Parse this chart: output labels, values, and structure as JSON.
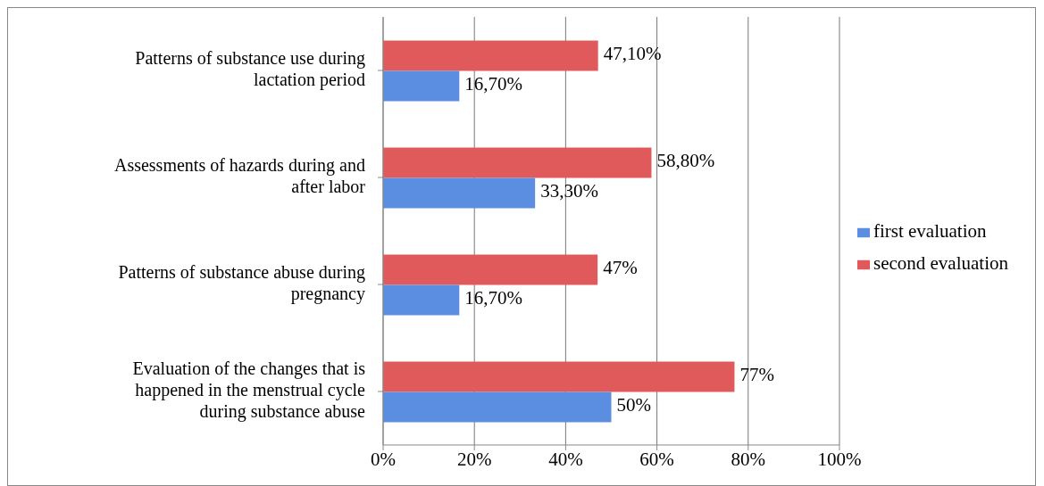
{
  "chart_data": {
    "type": "bar",
    "orientation": "horizontal",
    "categories": [
      "Patterns of substance use during lactation period",
      "Assessments  of hazards  during and after labor",
      "Patterns of substance abuse during pregnancy",
      "Evaluation of the changes that  is happened in the menstrual cycle during substance abuse"
    ],
    "series": [
      {
        "name": "second evaluation",
        "color": "#e05a5c",
        "values": [
          47.1,
          58.8,
          47,
          77
        ],
        "value_labels": [
          "47,10%",
          "58,80%",
          "47%",
          "77%"
        ]
      },
      {
        "name": "first evaluation",
        "color": "#5b8ee0",
        "values": [
          16.7,
          33.3,
          16.7,
          50
        ],
        "value_labels": [
          "16,70%",
          "33,30%",
          "16,70%",
          "50%"
        ]
      }
    ],
    "xlim": [
      0,
      100
    ],
    "xticks": [
      {
        "value": 0,
        "label": "0%"
      },
      {
        "value": 20,
        "label": "20%"
      },
      {
        "value": 40,
        "label": "40%"
      },
      {
        "value": 60,
        "label": "60%"
      },
      {
        "value": 80,
        "label": "80%"
      },
      {
        "value": 100,
        "label": "100%"
      }
    ],
    "grid": "x",
    "legend": "right"
  }
}
